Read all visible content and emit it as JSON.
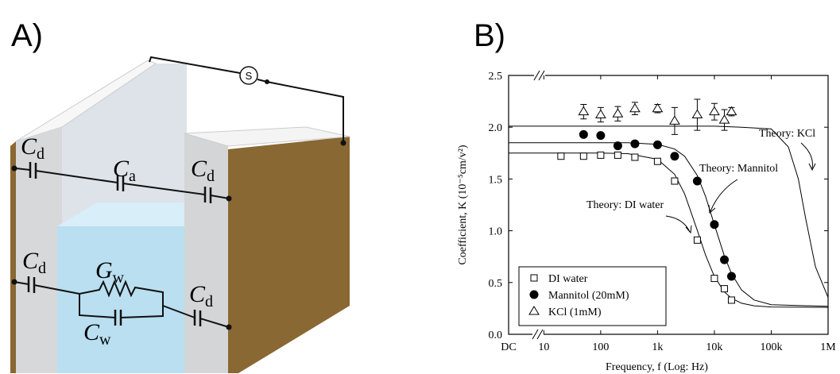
{
  "panel_a": {
    "label": "A)",
    "source": "S",
    "labels": [
      {
        "symbol": "C",
        "sub": "d"
      },
      {
        "symbol": "C",
        "sub": "a"
      },
      {
        "symbol": "C",
        "sub": "d"
      },
      {
        "symbol": "C",
        "sub": "d"
      },
      {
        "symbol": "G",
        "sub": "w"
      },
      {
        "symbol": "C",
        "sub": "d"
      },
      {
        "symbol": "C",
        "sub": "w"
      }
    ]
  },
  "chart_data": {
    "type": "scatter",
    "panel_label": "B)",
    "x_label": "Frequency, f (Log: Hz)",
    "y_label": "Coefficient, K (10⁻⁵cm/v²)",
    "x_log": true,
    "xlim": [
      2.4,
      1000000
    ],
    "xticks": [
      {
        "value": 2.4,
        "label": "DC"
      },
      10,
      100,
      {
        "value": 1000,
        "label": "1k"
      },
      {
        "value": 10000,
        "label": "10k"
      },
      {
        "value": 100000,
        "label": "100k"
      },
      {
        "value": 1000000,
        "label": "1M"
      }
    ],
    "ylim": [
      0,
      2.5
    ],
    "yticks": [
      {
        "value": 0,
        "label": "0.0"
      },
      0.5,
      {
        "value": 1,
        "label": "1.0"
      },
      1.5,
      {
        "value": 2,
        "label": "2.0"
      },
      2.5
    ],
    "legend": "lower left",
    "series": [
      {
        "name": "DI water",
        "marker": "square",
        "color": "#000000",
        "x": [
          20,
          50,
          100,
          200,
          400,
          1000,
          2000,
          5000,
          10000,
          15000,
          20000
        ],
        "values": [
          1.72,
          1.72,
          1.73,
          1.73,
          1.71,
          1.67,
          1.48,
          0.91,
          0.54,
          0.44,
          0.33
        ]
      },
      {
        "name": "Mannitol (20mM)",
        "marker": "circle",
        "color": "#000000",
        "x": [
          50,
          100,
          200,
          400,
          1000,
          2000,
          5000,
          10000,
          15000,
          20000
        ],
        "values": [
          1.93,
          1.92,
          1.82,
          1.84,
          1.83,
          1.72,
          1.48,
          1.06,
          0.72,
          0.56
        ]
      },
      {
        "name": "KCl (1mM)",
        "marker": "triangle",
        "color": "#000000",
        "x": [
          50,
          100,
          200,
          400,
          1000,
          2000,
          5000,
          10000,
          15000,
          20000
        ],
        "values": [
          2.15,
          2.12,
          2.13,
          2.18,
          2.18,
          2.06,
          2.12,
          2.15,
          2.07,
          2.15
        ],
        "errors": [
          0.07,
          0.07,
          0.07,
          0.06,
          0.04,
          0.13,
          0.15,
          0.08,
          0.1,
          0.04
        ]
      }
    ],
    "theory": [
      {
        "name": "Theory: DI water",
        "color": "#000000",
        "x": [
          2.4,
          10,
          100,
          300,
          1000,
          2000,
          3000,
          5000,
          7000,
          10000,
          15000,
          20000,
          30000,
          50000,
          100000,
          1000000
        ],
        "values": [
          1.75,
          1.75,
          1.75,
          1.745,
          1.69,
          1.545,
          1.356,
          1.005,
          0.763,
          0.558,
          0.409,
          0.348,
          0.3,
          0.275,
          0.264,
          0.26
        ]
      },
      {
        "name": "Theory: Mannitol",
        "color": "#000000",
        "x": [
          2.4,
          10,
          100,
          300,
          1000,
          2000,
          3000,
          5000,
          7000,
          10000,
          15000,
          20000,
          30000,
          50000,
          100000,
          1000000
        ],
        "values": [
          1.85,
          1.85,
          1.85,
          1.85,
          1.834,
          1.789,
          1.72,
          1.534,
          1.33,
          1.06,
          0.756,
          0.586,
          0.428,
          0.331,
          0.286,
          0.27
        ]
      },
      {
        "name": "Theory: KCl",
        "color": "#000000",
        "x": [
          2.4,
          10,
          100,
          1000,
          10000,
          30000,
          100000,
          200000,
          300000,
          400000,
          600000,
          1000000
        ],
        "values": [
          2.01,
          2.01,
          2.01,
          2.01,
          2.01,
          2.0,
          1.983,
          1.81,
          1.5,
          1.13,
          0.652,
          0.356
        ]
      }
    ]
  }
}
